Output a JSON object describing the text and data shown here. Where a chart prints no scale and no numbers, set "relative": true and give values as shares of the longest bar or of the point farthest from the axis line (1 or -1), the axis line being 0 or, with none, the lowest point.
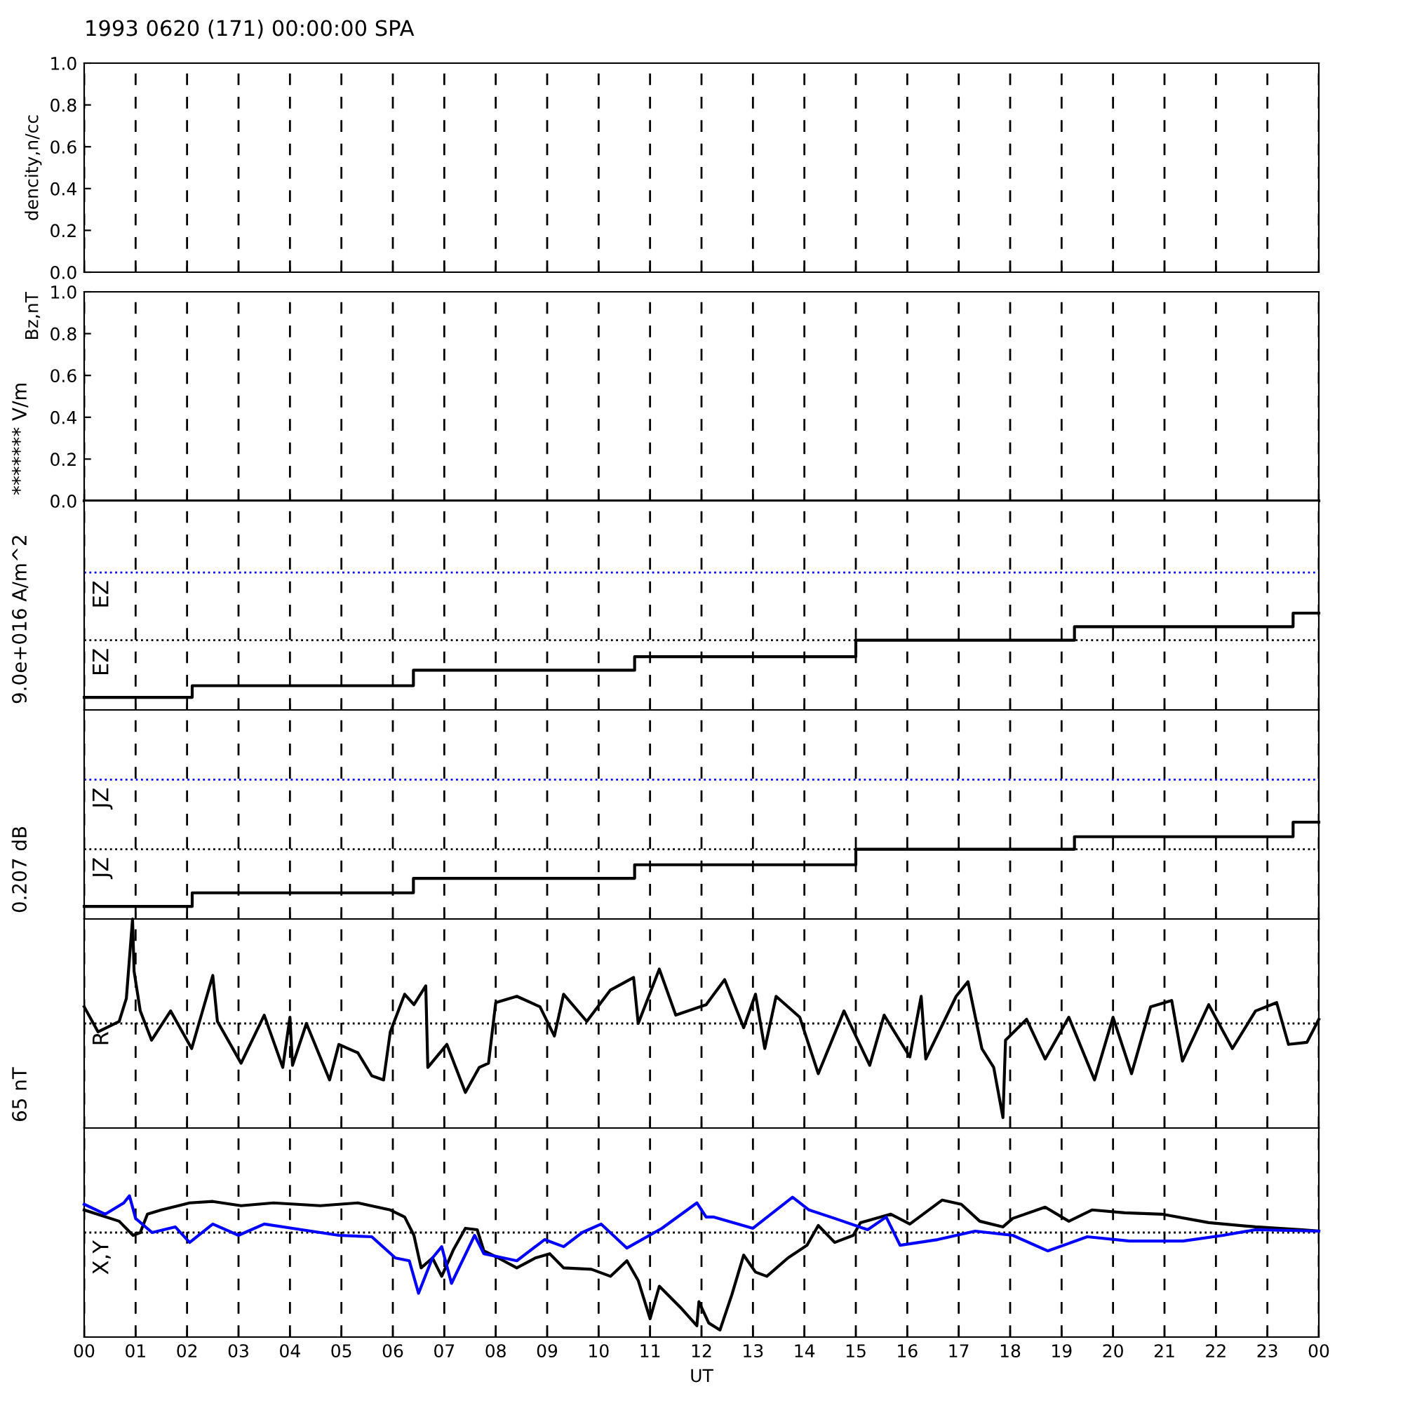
{
  "chart_data": [
    {
      "type": "line",
      "title": "1993 0620 (171) 00:00:00 SPA",
      "ylabel": "dencity,n/cc",
      "xlim": [
        0,
        24
      ],
      "xticks": [
        0,
        1,
        2,
        3,
        4,
        5,
        6,
        7,
        8,
        9,
        10,
        11,
        12,
        13,
        14,
        15,
        16,
        17,
        18,
        19,
        20,
        21,
        22,
        23,
        24
      ],
      "ylim": [
        0,
        1
      ],
      "yticks": [
        {
          "value": 0,
          "label": "0.0"
        },
        {
          "value": 0.2,
          "label": "0.2"
        },
        {
          "value": 0.4,
          "label": "0.4"
        },
        {
          "value": 0.6,
          "label": "0.6"
        },
        {
          "value": 0.8,
          "label": "0.8"
        },
        {
          "value": 1,
          "label": "1.0"
        }
      ],
      "grid": "x",
      "tick_labels": "y"
    },
    {
      "type": "line",
      "ylabel": "Bz,nT",
      "annotations": [
        "******* V/m"
      ],
      "xlim": [
        0,
        24
      ],
      "xticks": [
        0,
        1,
        2,
        3,
        4,
        5,
        6,
        7,
        8,
        9,
        10,
        11,
        12,
        13,
        14,
        15,
        16,
        17,
        18,
        19,
        20,
        21,
        22,
        23,
        24
      ],
      "ylim": [
        0,
        1
      ],
      "yticks": [
        {
          "value": 0,
          "label": "0.0"
        },
        {
          "value": 0.2,
          "label": "0.2"
        },
        {
          "value": 0.4,
          "label": "0.4"
        },
        {
          "value": 0.6,
          "label": "0.6"
        },
        {
          "value": 0.8,
          "label": "0.8"
        },
        {
          "value": 1,
          "label": "1.0"
        }
      ],
      "grid": "x",
      "tick_labels": "y",
      "series": [
        {
          "color": "#000000",
          "x": [
            0,
            24
          ],
          "values": [
            0,
            0
          ]
        }
      ]
    },
    {
      "type": "step",
      "relative": true,
      "annotations": [
        "9.0e+016 A/m^2"
      ],
      "xlim": [
        0,
        24
      ],
      "xticks": [
        0,
        1,
        2,
        3,
        4,
        5,
        6,
        7,
        8,
        9,
        10,
        11,
        12,
        13,
        14,
        15,
        16,
        17,
        18,
        19,
        20,
        21,
        22,
        23,
        24
      ],
      "grid": "x",
      "tick_labels": false,
      "ref_lines": [
        {
          "axis": "y",
          "value": 1.42,
          "label": "EZ",
          "color": "#0000ff",
          "line_style": "dotted"
        },
        {
          "axis": "y",
          "value": 0.72,
          "label": "EZ",
          "color": "#000000",
          "line_style": "dotted"
        }
      ],
      "series": [
        {
          "color": "#000000",
          "x": [
            0,
            2.1,
            6.4,
            10.7,
            15.0,
            19.25,
            23.5,
            24
          ],
          "values": [
            0.13,
            0.25,
            0.41,
            0.55,
            0.72,
            0.86,
            1,
            1
          ]
        }
      ]
    },
    {
      "type": "step",
      "relative": true,
      "annotations": [
        "0.207 dB"
      ],
      "xlim": [
        0,
        24
      ],
      "xticks": [
        0,
        1,
        2,
        3,
        4,
        5,
        6,
        7,
        8,
        9,
        10,
        11,
        12,
        13,
        14,
        15,
        16,
        17,
        18,
        19,
        20,
        21,
        22,
        23,
        24
      ],
      "grid": "x",
      "tick_labels": false,
      "ref_lines": [
        {
          "axis": "y",
          "value": 1.44,
          "label": "JZ",
          "color": "#0000ff",
          "line_style": "dotted"
        },
        {
          "axis": "y",
          "value": 0.72,
          "label": "JZ",
          "color": "#000000",
          "line_style": "dotted"
        }
      ],
      "series": [
        {
          "color": "#000000",
          "x": [
            0,
            2.1,
            6.4,
            10.7,
            15.0,
            19.25,
            23.5,
            24
          ],
          "values": [
            0.13,
            0.27,
            0.42,
            0.56,
            0.72,
            0.85,
            1,
            1
          ]
        }
      ]
    },
    {
      "type": "line",
      "relative": true,
      "annotations": [
        "65 nT"
      ],
      "xlim": [
        0,
        24
      ],
      "xticks": [
        0,
        1,
        2,
        3,
        4,
        5,
        6,
        7,
        8,
        9,
        10,
        11,
        12,
        13,
        14,
        15,
        16,
        17,
        18,
        19,
        20,
        21,
        22,
        23,
        24
      ],
      "grid": "x",
      "tick_labels": false,
      "ref_lines": [
        {
          "axis": "y",
          "value": 0.5,
          "label": "R",
          "color": "#000000",
          "line_style": "dotted"
        }
      ],
      "series": [
        {
          "color": "#000000",
          "x": [
            0,
            0.27,
            0.68,
            0.82,
            0.94,
            0.97,
            1.09,
            1.31,
            1.68,
            2.09,
            2.5,
            2.59,
            3.05,
            3.5,
            3.86,
            4.0,
            4.05,
            4.32,
            4.77,
            4.95,
            5.32,
            5.59,
            5.82,
            5.95,
            6.23,
            6.41,
            6.64,
            6.68,
            7.05,
            7.41,
            7.68,
            7.86,
            8.0,
            8.41,
            8.86,
            9.14,
            9.32,
            9.77,
            10.23,
            10.68,
            10.77,
            11.18,
            11.5,
            12.09,
            12.45,
            12.82,
            13.05,
            13.23,
            13.45,
            13.91,
            14.27,
            14.77,
            15.27,
            15.55,
            16.05,
            16.27,
            16.36,
            16.95,
            17.18,
            17.45,
            17.68,
            17.86,
            17.91,
            18.32,
            18.68,
            19.14,
            19.64,
            20.0,
            20.36,
            20.73,
            21.14,
            21.35,
            21.86,
            22.32,
            22.77,
            23.18,
            23.41,
            23.77,
            24.0
          ],
          "values": [
            0.58,
            0.46,
            0.51,
            0.62,
            1.0,
            0.75,
            0.56,
            0.42,
            0.56,
            0.38,
            0.73,
            0.51,
            0.31,
            0.54,
            0.29,
            0.53,
            0.3,
            0.5,
            0.23,
            0.4,
            0.36,
            0.25,
            0.23,
            0.46,
            0.64,
            0.59,
            0.68,
            0.29,
            0.4,
            0.17,
            0.29,
            0.31,
            0.6,
            0.63,
            0.58,
            0.44,
            0.64,
            0.51,
            0.66,
            0.72,
            0.5,
            0.76,
            0.54,
            0.59,
            0.71,
            0.48,
            0.64,
            0.38,
            0.63,
            0.53,
            0.26,
            0.56,
            0.3,
            0.54,
            0.34,
            0.63,
            0.33,
            0.63,
            0.7,
            0.38,
            0.29,
            0.05,
            0.42,
            0.52,
            0.33,
            0.53,
            0.23,
            0.53,
            0.26,
            0.58,
            0.61,
            0.32,
            0.59,
            0.38,
            0.56,
            0.6,
            0.4,
            0.41,
            0.52
          ]
        }
      ]
    },
    {
      "type": "line",
      "relative": true,
      "xlabel": "UT",
      "xlim": [
        0,
        24
      ],
      "xticks": [
        {
          "value": 0,
          "label": "00"
        },
        {
          "value": 1,
          "label": "01"
        },
        {
          "value": 2,
          "label": "02"
        },
        {
          "value": 3,
          "label": "03"
        },
        {
          "value": 4,
          "label": "04"
        },
        {
          "value": 5,
          "label": "05"
        },
        {
          "value": 6,
          "label": "06"
        },
        {
          "value": 7,
          "label": "07"
        },
        {
          "value": 8,
          "label": "08"
        },
        {
          "value": 9,
          "label": "09"
        },
        {
          "value": 10,
          "label": "10"
        },
        {
          "value": 11,
          "label": "11"
        },
        {
          "value": 12,
          "label": "12"
        },
        {
          "value": 13,
          "label": "13"
        },
        {
          "value": 14,
          "label": "14"
        },
        {
          "value": 15,
          "label": "15"
        },
        {
          "value": 16,
          "label": "16"
        },
        {
          "value": 17,
          "label": "17"
        },
        {
          "value": 18,
          "label": "18"
        },
        {
          "value": 19,
          "label": "19"
        },
        {
          "value": 20,
          "label": "20"
        },
        {
          "value": 21,
          "label": "21"
        },
        {
          "value": 22,
          "label": "22"
        },
        {
          "value": 23,
          "label": "23"
        },
        {
          "value": 24,
          "label": "00"
        }
      ],
      "grid": "x",
      "tick_labels": "x",
      "ref_lines": [
        {
          "axis": "y",
          "value": 0.74,
          "label": "X,Y",
          "color": "#000000",
          "line_style": "dotted"
        }
      ],
      "series": [
        {
          "color": "#000000",
          "x": [
            0,
            0.68,
            0.95,
            1.09,
            1.23,
            1.5,
            2.05,
            2.5,
            3.05,
            3.68,
            4.59,
            5.32,
            5.95,
            6.23,
            6.41,
            6.55,
            6.77,
            6.95,
            7.18,
            7.41,
            7.64,
            7.77,
            8.05,
            8.41,
            8.77,
            9.05,
            9.32,
            9.86,
            10.23,
            10.55,
            10.77,
            11.0,
            11.18,
            11.59,
            11.91,
            11.95,
            12.14,
            12.36,
            12.59,
            12.82,
            13.05,
            13.27,
            13.68,
            14.05,
            14.27,
            14.59,
            14.95,
            15.09,
            15.68,
            16.05,
            16.68,
            17.05,
            17.41,
            17.86,
            18.05,
            18.68,
            19.14,
            19.59,
            20.23,
            20.95,
            21.86,
            22.77,
            23.68,
            24
          ],
          "values": [
            0.9,
            0.82,
            0.72,
            0.74,
            0.87,
            0.9,
            0.95,
            0.96,
            0.93,
            0.95,
            0.93,
            0.95,
            0.9,
            0.85,
            0.72,
            0.49,
            0.56,
            0.43,
            0.62,
            0.77,
            0.76,
            0.61,
            0.56,
            0.49,
            0.56,
            0.59,
            0.49,
            0.48,
            0.43,
            0.54,
            0.4,
            0.13,
            0.36,
            0.21,
            0.08,
            0.25,
            0.1,
            0.05,
            0.3,
            0.58,
            0.46,
            0.43,
            0.56,
            0.65,
            0.79,
            0.67,
            0.72,
            0.81,
            0.87,
            0.8,
            0.97,
            0.94,
            0.82,
            0.78,
            0.84,
            0.92,
            0.82,
            0.9,
            0.88,
            0.87,
            0.81,
            0.78,
            0.76,
            0.75
          ]
        },
        {
          "color": "#0000ff",
          "x": [
            0,
            0.41,
            0.77,
            0.88,
            1.0,
            1.32,
            1.77,
            2.05,
            2.5,
            3.0,
            3.5,
            4.05,
            4.95,
            5.59,
            6.05,
            6.32,
            6.5,
            6.77,
            6.95,
            7.14,
            7.59,
            7.77,
            8.41,
            8.95,
            9.32,
            9.68,
            10.05,
            10.55,
            11.23,
            11.91,
            12.09,
            12.23,
            13.0,
            13.77,
            14.09,
            14.59,
            15.23,
            15.59,
            15.86,
            16.59,
            17.32,
            18.05,
            18.73,
            19.5,
            20.32,
            21.36,
            22.14,
            22.77,
            24
          ],
          "values": [
            0.94,
            0.87,
            0.95,
            1.0,
            0.84,
            0.74,
            0.78,
            0.67,
            0.8,
            0.72,
            0.8,
            0.77,
            0.72,
            0.71,
            0.56,
            0.54,
            0.31,
            0.56,
            0.64,
            0.38,
            0.72,
            0.59,
            0.54,
            0.69,
            0.64,
            0.74,
            0.8,
            0.63,
            0.77,
            0.95,
            0.85,
            0.85,
            0.77,
            0.99,
            0.9,
            0.84,
            0.76,
            0.85,
            0.65,
            0.69,
            0.75,
            0.72,
            0.61,
            0.71,
            0.68,
            0.68,
            0.72,
            0.76,
            0.75
          ]
        }
      ]
    }
  ]
}
